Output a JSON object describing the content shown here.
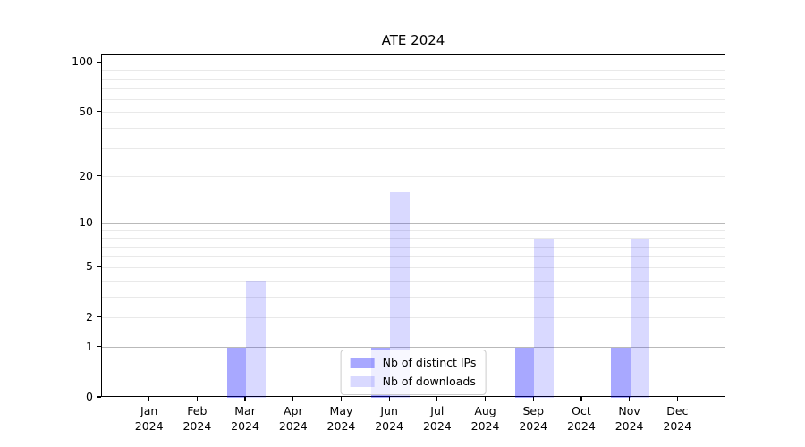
{
  "figure": {
    "background": "#ffffff"
  },
  "chart_data": {
    "type": "bar",
    "title": "ATE 2024",
    "categories": [
      "Jan\n2024",
      "Feb\n2024",
      "Mar\n2024",
      "Apr\n2024",
      "May\n2024",
      "Jun\n2024",
      "Jul\n2024",
      "Aug\n2024",
      "Sep\n2024",
      "Oct\n2024",
      "Nov\n2024",
      "Dec\n2024"
    ],
    "series": [
      {
        "name": "Nb of distinct IPs",
        "color": "rgba(0,0,255,0.34)",
        "values": [
          0,
          0,
          1,
          0,
          0,
          1,
          0,
          0,
          1,
          0,
          1,
          0
        ]
      },
      {
        "name": "Nb of downloads",
        "color": "rgba(0,0,255,0.15)",
        "values": [
          0,
          0,
          4,
          0,
          0,
          16,
          0,
          0,
          8,
          0,
          8,
          0
        ]
      }
    ],
    "yscale": "log1p",
    "ylim": [
      0,
      112
    ],
    "ytick_labels": [
      0,
      1,
      2,
      5,
      10,
      20,
      50,
      100
    ],
    "grid_major_values": [
      1,
      10,
      100
    ],
    "grid_minor_values": [
      2,
      3,
      4,
      5,
      6,
      7,
      8,
      9,
      20,
      30,
      40,
      50,
      60,
      70,
      80,
      90
    ],
    "grid": true,
    "legend_position": "lower center",
    "colors": {
      "grid_major": "#b9b9b9",
      "grid_minor": "#e9e9e9",
      "axis": "#000000",
      "text": "#000000",
      "legend_border": "#cccccc",
      "legend_background": "rgba(255,255,255,0.8)"
    }
  }
}
